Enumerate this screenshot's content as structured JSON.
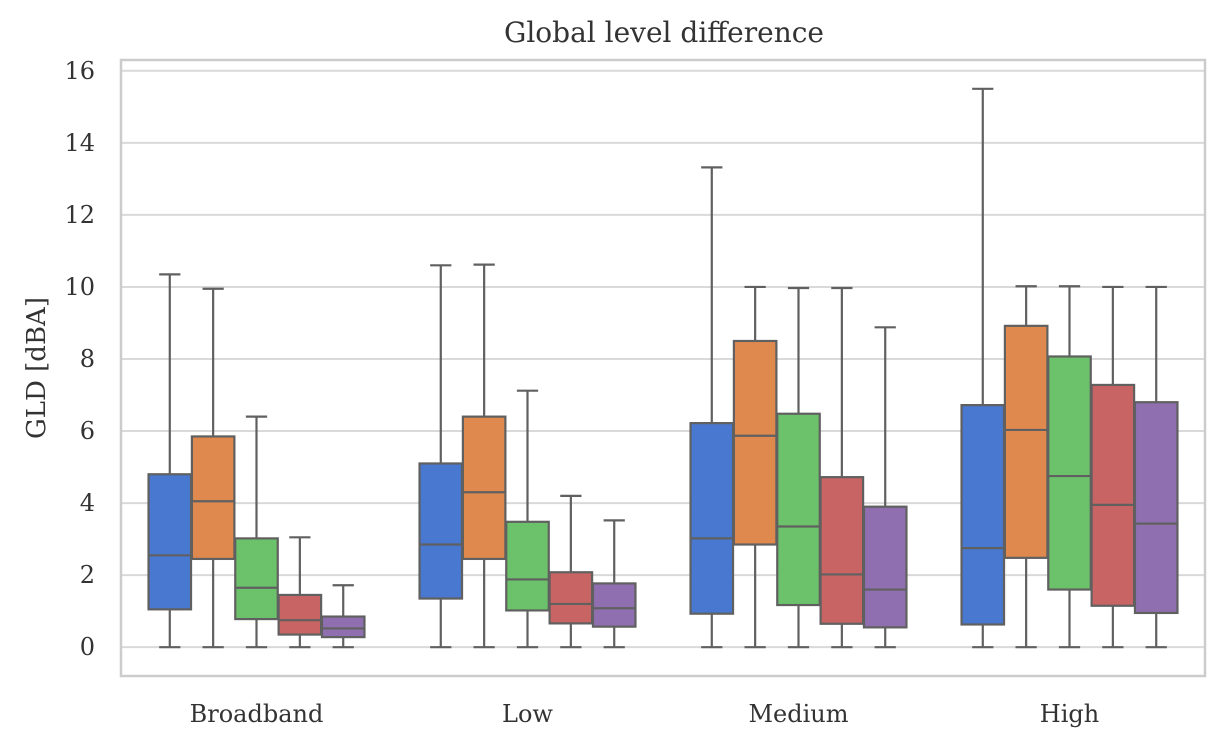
{
  "chart_data": {
    "type": "box",
    "title": "Global level difference",
    "xlabel": "",
    "ylabel": "GLD [dBA]",
    "ylim": [
      -0.8,
      16.3
    ],
    "yticks": [
      0,
      2,
      4,
      6,
      8,
      10,
      12,
      14,
      16
    ],
    "grid": "horizontal",
    "categories": [
      "Broadband",
      "Low",
      "Medium",
      "High"
    ],
    "series_colors": [
      "#4878cf",
      "#e0894f",
      "#6bc26b",
      "#c96464",
      "#8f6fb0"
    ],
    "boxes": [
      [
        {
          "whislo": 0,
          "q1": 1.05,
          "med": 2.55,
          "q3": 4.8,
          "whishi": 10.35
        },
        {
          "whislo": 0,
          "q1": 2.45,
          "med": 4.05,
          "q3": 5.85,
          "whishi": 9.95
        },
        {
          "whislo": 0,
          "q1": 0.78,
          "med": 1.65,
          "q3": 3.02,
          "whishi": 6.4
        },
        {
          "whislo": 0,
          "q1": 0.35,
          "med": 0.75,
          "q3": 1.45,
          "whishi": 3.05
        },
        {
          "whislo": 0,
          "q1": 0.28,
          "med": 0.52,
          "q3": 0.85,
          "whishi": 1.72
        }
      ],
      [
        {
          "whislo": 0,
          "q1": 1.35,
          "med": 2.85,
          "q3": 5.1,
          "whishi": 10.6
        },
        {
          "whislo": 0,
          "q1": 2.45,
          "med": 4.3,
          "q3": 6.4,
          "whishi": 10.62
        },
        {
          "whislo": 0,
          "q1": 1.02,
          "med": 1.88,
          "q3": 3.48,
          "whishi": 7.12
        },
        {
          "whislo": 0,
          "q1": 0.66,
          "med": 1.2,
          "q3": 2.08,
          "whishi": 4.2
        },
        {
          "whislo": 0,
          "q1": 0.57,
          "med": 1.08,
          "q3": 1.77,
          "whishi": 3.52
        }
      ],
      [
        {
          "whislo": 0,
          "q1": 0.93,
          "med": 3.02,
          "q3": 6.22,
          "whishi": 13.32
        },
        {
          "whislo": 0,
          "q1": 2.85,
          "med": 5.87,
          "q3": 8.5,
          "whishi": 10.0
        },
        {
          "whislo": 0,
          "q1": 1.17,
          "med": 3.35,
          "q3": 6.48,
          "whishi": 9.97
        },
        {
          "whislo": 0,
          "q1": 0.65,
          "med": 2.02,
          "q3": 4.72,
          "whishi": 9.97
        },
        {
          "whislo": 0,
          "q1": 0.55,
          "med": 1.6,
          "q3": 3.9,
          "whishi": 8.88
        }
      ],
      [
        {
          "whislo": 0,
          "q1": 0.63,
          "med": 2.75,
          "q3": 6.72,
          "whishi": 15.5
        },
        {
          "whislo": 0,
          "q1": 2.48,
          "med": 6.03,
          "q3": 8.92,
          "whishi": 10.02
        },
        {
          "whislo": 0,
          "q1": 1.6,
          "med": 4.75,
          "q3": 8.07,
          "whishi": 10.02
        },
        {
          "whislo": 0,
          "q1": 1.15,
          "med": 3.95,
          "q3": 7.28,
          "whishi": 10.0
        },
        {
          "whislo": 0,
          "q1": 0.95,
          "med": 3.43,
          "q3": 6.8,
          "whishi": 10.0
        }
      ]
    ]
  }
}
